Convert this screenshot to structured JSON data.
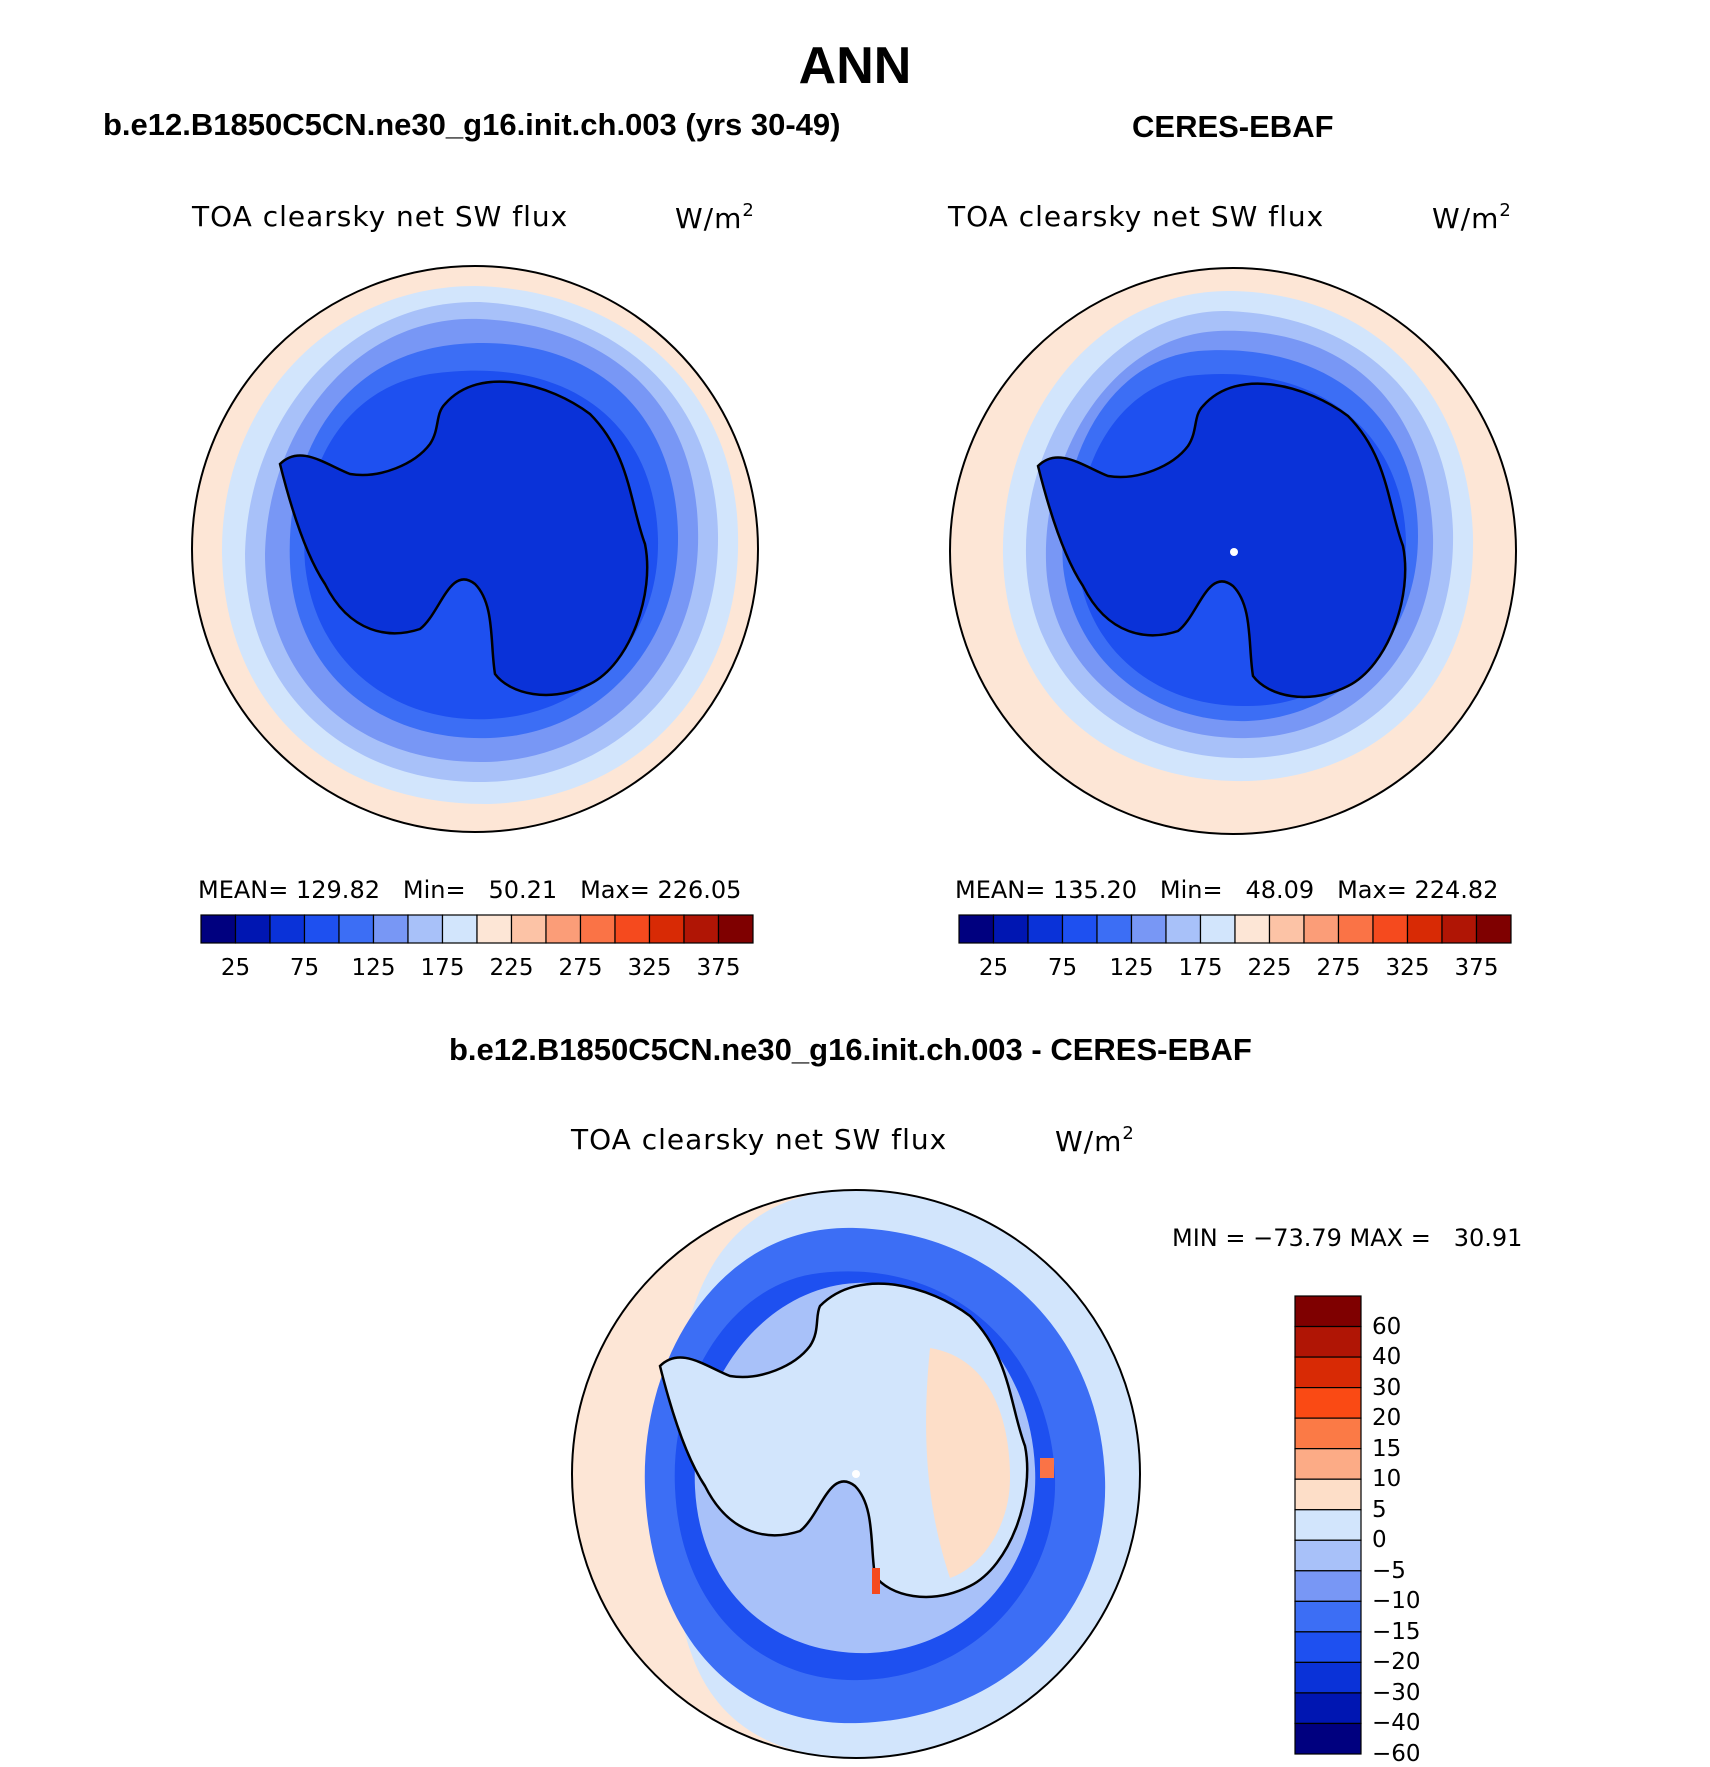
{
  "title": "ANN",
  "panels": [
    {
      "case_title": "b.e12.B1850C5CN.ne30_g16.init.ch.003 (yrs 30-49)",
      "variable": "TOA clearsky net SW flux",
      "units_base": "W/m",
      "units_exp": "2",
      "mean_label": "MEAN=",
      "mean": "129.82",
      "min_label": "Min=",
      "min": "50.21",
      "max_label": "Max=",
      "max": "226.05"
    },
    {
      "case_title": "CERES-EBAF",
      "variable": "TOA clearsky net SW flux",
      "units_base": "W/m",
      "units_exp": "2",
      "mean_label": "MEAN=",
      "mean": "135.20",
      "min_label": "Min=",
      "min": "48.09",
      "max_label": "Max=",
      "max": "224.82"
    }
  ],
  "diff_panel": {
    "case_title": "b.e12.B1850C5CN.ne30_g16.init.ch.003 - CERES-EBAF",
    "variable": "TOA clearsky net SW flux",
    "units_base": "W/m",
    "units_exp": "2",
    "minmax_text": "MIN = −73.79 MAX =   30.91"
  },
  "colorbar_top": {
    "colors": [
      "#00007f",
      "#0016b2",
      "#0a32d8",
      "#1e50f0",
      "#3c6ef5",
      "#7897f5",
      "#a8c1f9",
      "#d2e5fc",
      "#fde6d6",
      "#fcc3a6",
      "#fb9d78",
      "#fa7346",
      "#f54a1e",
      "#d82a05",
      "#b01505",
      "#7f0000"
    ],
    "tick_labels": [
      "25",
      "75",
      "125",
      "175",
      "225",
      "275",
      "325",
      "375"
    ]
  },
  "colorbar_diff": {
    "colors_top_to_bottom": [
      "#7f0000",
      "#b01505",
      "#d82a05",
      "#fa4a14",
      "#fb7a46",
      "#fcab86",
      "#fddec8",
      "#d2e5fc",
      "#a8c1f9",
      "#7897f5",
      "#3c6ef5",
      "#1e50f0",
      "#0a32d8",
      "#0016b2",
      "#00007f"
    ],
    "tick_labels_top_to_bottom": [
      "60",
      "40",
      "30",
      "20",
      "15",
      "10",
      "5",
      "0",
      "−5",
      "−10",
      "−15",
      "−20",
      "−30",
      "−40",
      "−60"
    ]
  }
}
